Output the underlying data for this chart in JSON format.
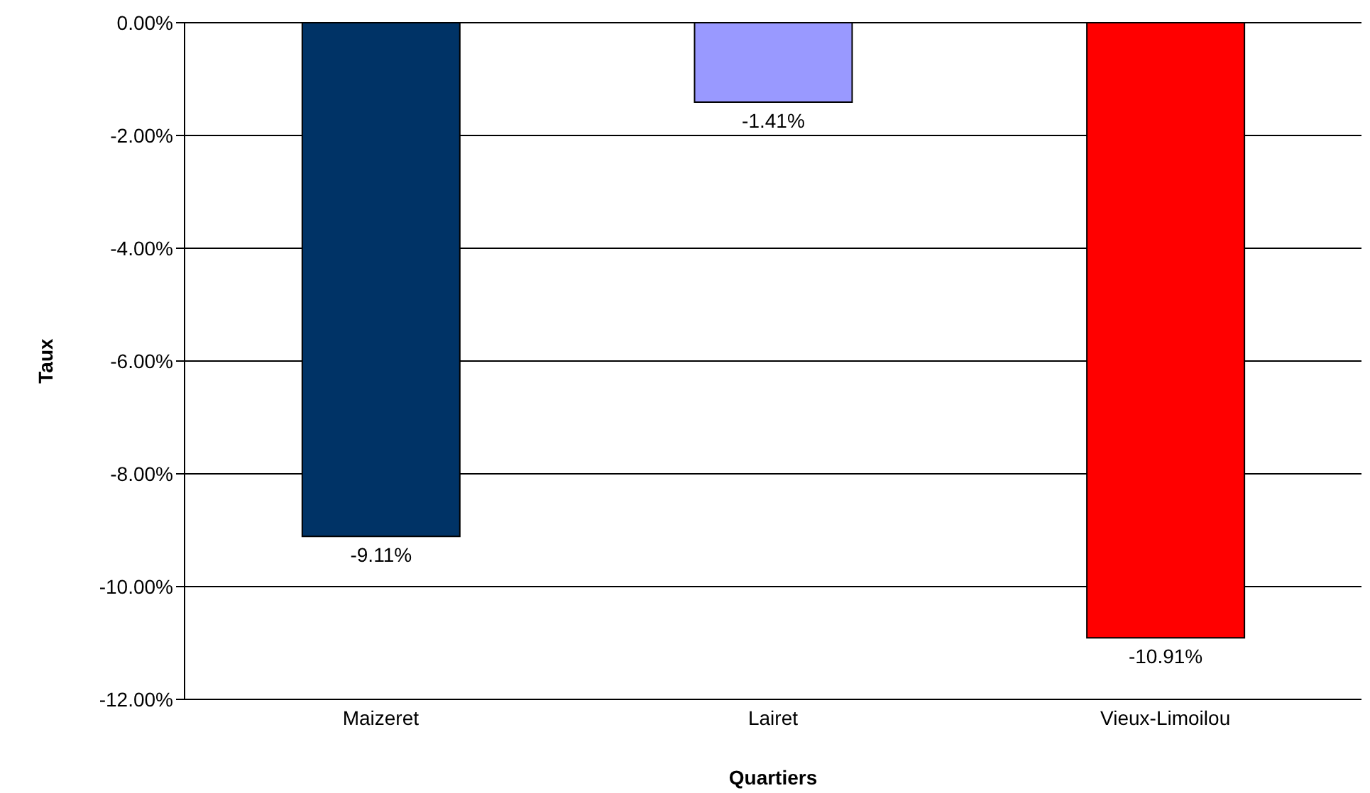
{
  "chart_data": {
    "type": "bar",
    "xlabel": "Quartiers",
    "ylabel": "Taux",
    "categories": [
      "Maizeret",
      "Lairet",
      "Vieux-Limoilou"
    ],
    "values": [
      -9.11,
      -1.41,
      -10.91
    ],
    "colors": [
      "#003366",
      "#9999ff",
      "#ff0000"
    ],
    "value_labels": [
      "-9.11%",
      "-1.41%",
      "-10.91%"
    ],
    "ylim": [
      -12,
      0
    ],
    "yticks": [
      {
        "value": -12,
        "label": "-12.00%"
      },
      {
        "value": -10,
        "label": "-10.00%"
      },
      {
        "value": -8,
        "label": "-8.00%"
      },
      {
        "value": -6,
        "label": "-6.00%"
      },
      {
        "value": -4,
        "label": "-4.00%"
      },
      {
        "value": -2,
        "label": "-2.00%"
      },
      {
        "value": 0,
        "label": "0.00%"
      }
    ],
    "grid": "y",
    "legend": false
  }
}
